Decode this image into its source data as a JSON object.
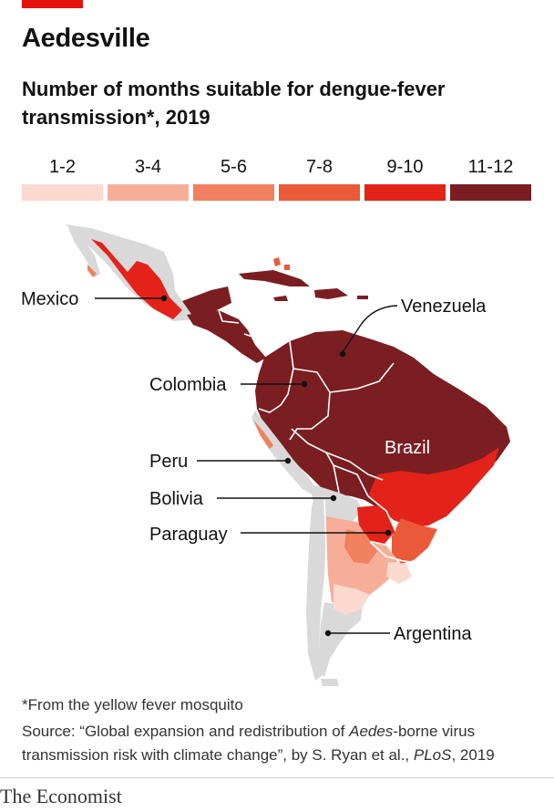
{
  "title": "Aedesville",
  "subtitle": "Number of months suitable for dengue-fever transmission*, 2019",
  "legend": [
    {
      "label": "1-2",
      "color": "#fbd9cf"
    },
    {
      "label": "3-4",
      "color": "#f7ae98"
    },
    {
      "label": "5-6",
      "color": "#f0805f"
    },
    {
      "label": "7-8",
      "color": "#ea5a39"
    },
    {
      "label": "9-10",
      "color": "#e3221a"
    },
    {
      "label": "11-12",
      "color": "#7a1e22"
    }
  ],
  "labels": {
    "mexico": "Mexico",
    "venezuela": "Venezuela",
    "colombia": "Colombia",
    "brazil": "Brazil",
    "peru": "Peru",
    "bolivia": "Bolivia",
    "paraguay": "Paraguay",
    "argentina": "Argentina"
  },
  "footnote": "*From the yellow fever mosquito",
  "source": {
    "prefix": "Source: “Global expansion and redistribution of ",
    "italic1": "Aedes",
    "middle": "-borne virus transmission risk with climate change”, by S. Ryan et al., ",
    "italic2": "PLoS",
    "suffix": ", 2019"
  },
  "brand": "The Economist",
  "colors": {
    "land_grey": "#d9d9d9",
    "accent": "#e3120b",
    "border": "#ffffff"
  }
}
